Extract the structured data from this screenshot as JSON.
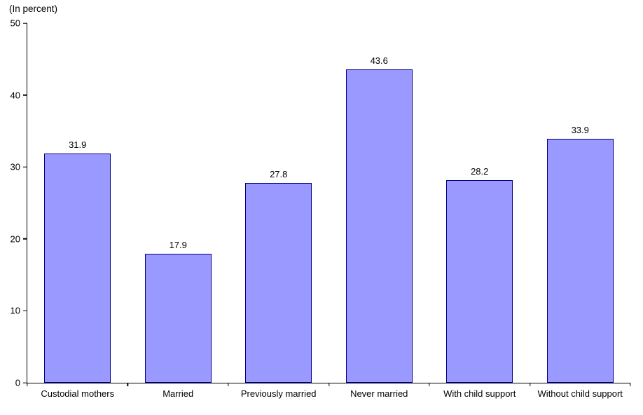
{
  "chart_data": {
    "type": "bar",
    "title": "",
    "unit_label": "(In percent)",
    "categories": [
      "Custodial mothers",
      "Married",
      "Previously married",
      "Never married",
      "With child support",
      "Without child support"
    ],
    "values": [
      31.9,
      17.9,
      27.8,
      43.6,
      28.2,
      33.9
    ],
    "xlabel": "",
    "ylabel": "(In percent)",
    "ylim": [
      0,
      50
    ],
    "yticks": [
      0,
      10,
      20,
      30,
      40,
      50
    ],
    "grid": false,
    "legend_position": "none",
    "bar_fill_color": "#9999ff",
    "bar_border_color": "#000080",
    "axis_color": "#000000",
    "text_color": "#000000"
  }
}
